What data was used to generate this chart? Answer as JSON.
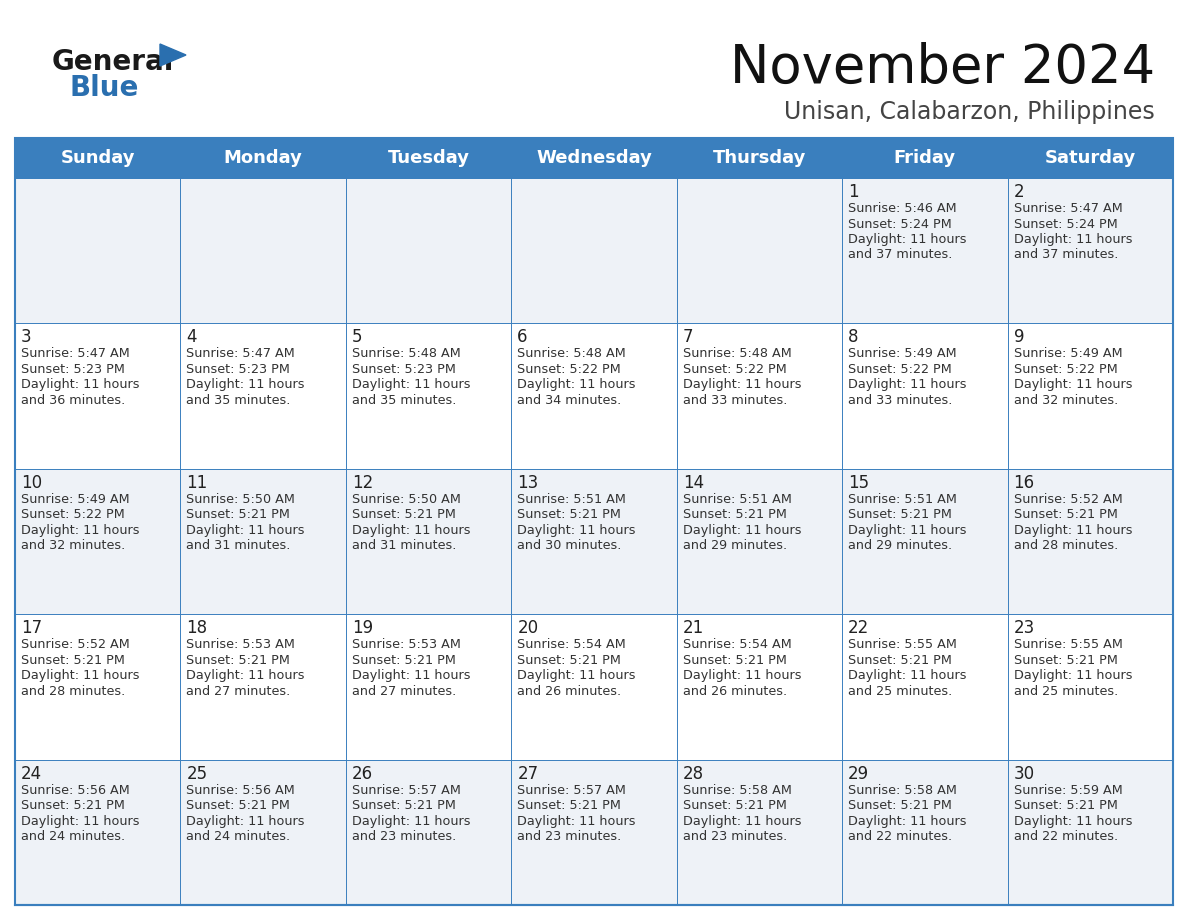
{
  "title": "November 2024",
  "subtitle": "Unisan, Calabarzon, Philippines",
  "days_of_week": [
    "Sunday",
    "Monday",
    "Tuesday",
    "Wednesday",
    "Thursday",
    "Friday",
    "Saturday"
  ],
  "header_bg": "#3a7fbe",
  "header_text": "#ffffff",
  "row_bg": [
    "#eef2f7",
    "#ffffff",
    "#eef2f7",
    "#ffffff",
    "#eef2f7"
  ],
  "cell_border_color": "#3a7fbe",
  "day_number_color": "#222222",
  "text_color": "#333333",
  "logo_general_color": "#1a1a1a",
  "logo_blue_color": "#2a6faf",
  "calendar_data": [
    [
      null,
      null,
      null,
      null,
      null,
      {
        "day": 1,
        "sunrise": "5:46 AM",
        "sunset": "5:24 PM",
        "daylight": "11 hours and 37 minutes."
      },
      {
        "day": 2,
        "sunrise": "5:47 AM",
        "sunset": "5:24 PM",
        "daylight": "11 hours and 37 minutes."
      }
    ],
    [
      {
        "day": 3,
        "sunrise": "5:47 AM",
        "sunset": "5:23 PM",
        "daylight": "11 hours and 36 minutes."
      },
      {
        "day": 4,
        "sunrise": "5:47 AM",
        "sunset": "5:23 PM",
        "daylight": "11 hours and 35 minutes."
      },
      {
        "day": 5,
        "sunrise": "5:48 AM",
        "sunset": "5:23 PM",
        "daylight": "11 hours and 35 minutes."
      },
      {
        "day": 6,
        "sunrise": "5:48 AM",
        "sunset": "5:22 PM",
        "daylight": "11 hours and 34 minutes."
      },
      {
        "day": 7,
        "sunrise": "5:48 AM",
        "sunset": "5:22 PM",
        "daylight": "11 hours and 33 minutes."
      },
      {
        "day": 8,
        "sunrise": "5:49 AM",
        "sunset": "5:22 PM",
        "daylight": "11 hours and 33 minutes."
      },
      {
        "day": 9,
        "sunrise": "5:49 AM",
        "sunset": "5:22 PM",
        "daylight": "11 hours and 32 minutes."
      }
    ],
    [
      {
        "day": 10,
        "sunrise": "5:49 AM",
        "sunset": "5:22 PM",
        "daylight": "11 hours and 32 minutes."
      },
      {
        "day": 11,
        "sunrise": "5:50 AM",
        "sunset": "5:21 PM",
        "daylight": "11 hours and 31 minutes."
      },
      {
        "day": 12,
        "sunrise": "5:50 AM",
        "sunset": "5:21 PM",
        "daylight": "11 hours and 31 minutes."
      },
      {
        "day": 13,
        "sunrise": "5:51 AM",
        "sunset": "5:21 PM",
        "daylight": "11 hours and 30 minutes."
      },
      {
        "day": 14,
        "sunrise": "5:51 AM",
        "sunset": "5:21 PM",
        "daylight": "11 hours and 29 minutes."
      },
      {
        "day": 15,
        "sunrise": "5:51 AM",
        "sunset": "5:21 PM",
        "daylight": "11 hours and 29 minutes."
      },
      {
        "day": 16,
        "sunrise": "5:52 AM",
        "sunset": "5:21 PM",
        "daylight": "11 hours and 28 minutes."
      }
    ],
    [
      {
        "day": 17,
        "sunrise": "5:52 AM",
        "sunset": "5:21 PM",
        "daylight": "11 hours and 28 minutes."
      },
      {
        "day": 18,
        "sunrise": "5:53 AM",
        "sunset": "5:21 PM",
        "daylight": "11 hours and 27 minutes."
      },
      {
        "day": 19,
        "sunrise": "5:53 AM",
        "sunset": "5:21 PM",
        "daylight": "11 hours and 27 minutes."
      },
      {
        "day": 20,
        "sunrise": "5:54 AM",
        "sunset": "5:21 PM",
        "daylight": "11 hours and 26 minutes."
      },
      {
        "day": 21,
        "sunrise": "5:54 AM",
        "sunset": "5:21 PM",
        "daylight": "11 hours and 26 minutes."
      },
      {
        "day": 22,
        "sunrise": "5:55 AM",
        "sunset": "5:21 PM",
        "daylight": "11 hours and 25 minutes."
      },
      {
        "day": 23,
        "sunrise": "5:55 AM",
        "sunset": "5:21 PM",
        "daylight": "11 hours and 25 minutes."
      }
    ],
    [
      {
        "day": 24,
        "sunrise": "5:56 AM",
        "sunset": "5:21 PM",
        "daylight": "11 hours and 24 minutes."
      },
      {
        "day": 25,
        "sunrise": "5:56 AM",
        "sunset": "5:21 PM",
        "daylight": "11 hours and 24 minutes."
      },
      {
        "day": 26,
        "sunrise": "5:57 AM",
        "sunset": "5:21 PM",
        "daylight": "11 hours and 23 minutes."
      },
      {
        "day": 27,
        "sunrise": "5:57 AM",
        "sunset": "5:21 PM",
        "daylight": "11 hours and 23 minutes."
      },
      {
        "day": 28,
        "sunrise": "5:58 AM",
        "sunset": "5:21 PM",
        "daylight": "11 hours and 23 minutes."
      },
      {
        "day": 29,
        "sunrise": "5:58 AM",
        "sunset": "5:21 PM",
        "daylight": "11 hours and 22 minutes."
      },
      {
        "day": 30,
        "sunrise": "5:59 AM",
        "sunset": "5:21 PM",
        "daylight": "11 hours and 22 minutes."
      }
    ]
  ]
}
